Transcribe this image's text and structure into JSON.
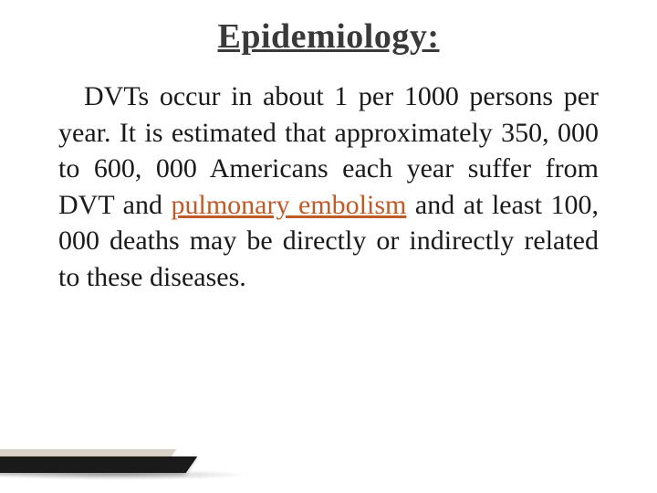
{
  "slide": {
    "title": "Epidemiology:",
    "body_before_link": "DVTs occur in about 1 per 1000 persons per year. It is estimated that approximately 350, 000 to 600, 000 Americans each year suffer from DVT and ",
    "link_text": "pulmonary embolism",
    "body_after_link": " and at least 100, 000 deaths may be directly or indirectly related to these diseases."
  },
  "style": {
    "background_color": "#ffffff",
    "title_color": "#3a3a3a",
    "title_fontsize": 38,
    "body_color": "#1a1a1a",
    "body_fontsize": 30,
    "link_color": "#c05a28",
    "decor_dark": "#1a1a1a",
    "decor_light": "#d8d2c8"
  }
}
